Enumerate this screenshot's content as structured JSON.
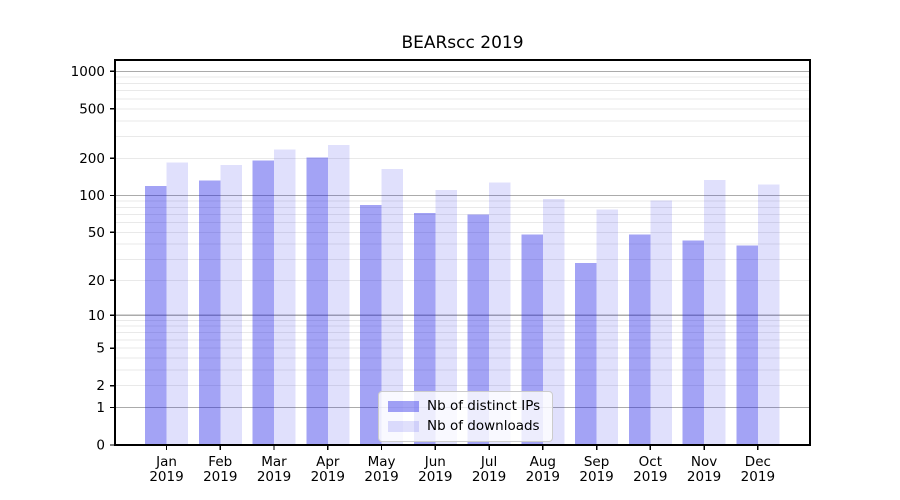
{
  "chart_data": {
    "type": "bar",
    "title": "BEARscc 2019",
    "year_label": "2019",
    "categories": [
      "Jan",
      "Feb",
      "Mar",
      "Apr",
      "May",
      "Jun",
      "Jul",
      "Aug",
      "Sep",
      "Oct",
      "Nov",
      "Dec"
    ],
    "series": [
      {
        "name": "Nb of distinct IPs",
        "color": "#1a1ae6",
        "alpha": 0.4,
        "values": [
          119,
          132,
          191,
          203,
          84,
          72,
          70,
          48,
          28,
          48,
          43,
          39
        ]
      },
      {
        "name": "Nb of downloads",
        "color": "#1a1ae6",
        "alpha": 0.135,
        "values": [
          185,
          177,
          236,
          256,
          164,
          111,
          127,
          94,
          77,
          91,
          134,
          123
        ]
      }
    ],
    "yscale": "log(1+x)",
    "ylim": [
      0,
      1236
    ],
    "yticks": [
      0,
      1,
      2,
      5,
      10,
      20,
      50,
      100,
      200,
      500,
      1000
    ],
    "grid": {
      "major_at": [
        1,
        10,
        100,
        1000
      ],
      "major_color": "#ababab",
      "minor_color": "#e9e9e9",
      "on": true
    },
    "legend": {
      "location": "lower center",
      "background": "#ffffff",
      "border_color": "#cccccc"
    },
    "axis_color": "#000000"
  }
}
